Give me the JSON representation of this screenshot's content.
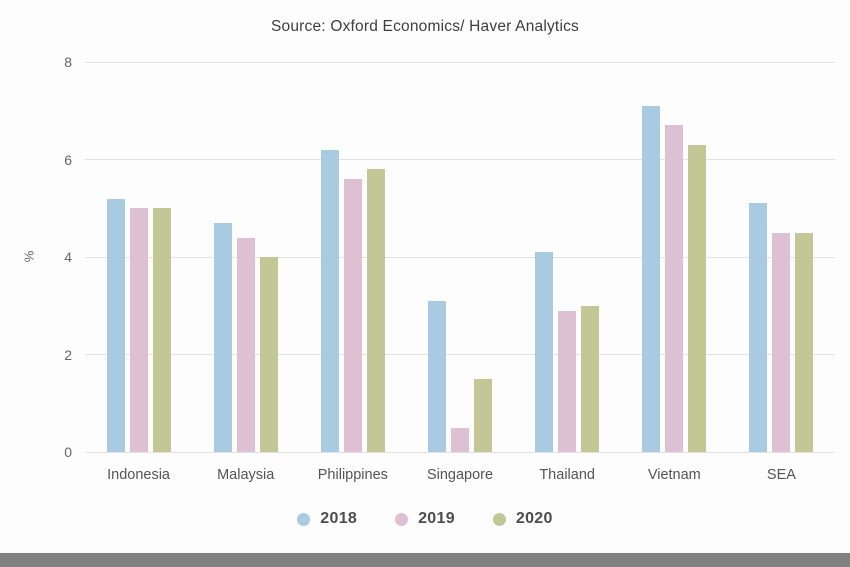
{
  "title": "Source: Oxford Economics/ Haver Analytics",
  "chart_data": {
    "type": "bar",
    "title": "Source: Oxford Economics/ Haver Analytics",
    "xlabel": "",
    "ylabel": "%",
    "ylim": [
      0,
      8
    ],
    "yticks": [
      0,
      2,
      4,
      6,
      8
    ],
    "grid": true,
    "legend_position": "bottom",
    "categories": [
      "Indonesia",
      "Malaysia",
      "Philippines",
      "Singapore",
      "Thailand",
      "Vietnam",
      "SEA"
    ],
    "series": [
      {
        "name": "2018",
        "color": "#a8cbe2",
        "values": [
          5.2,
          4.7,
          6.2,
          3.1,
          4.1,
          7.1,
          5.1
        ]
      },
      {
        "name": "2019",
        "color": "#ddc1d2",
        "values": [
          5.0,
          4.4,
          5.6,
          0.5,
          2.9,
          6.7,
          4.5
        ]
      },
      {
        "name": "2020",
        "color": "#c3c795",
        "values": [
          5.0,
          4.0,
          5.8,
          1.5,
          3.0,
          6.3,
          4.5
        ]
      }
    ]
  },
  "colors": {
    "background": "#fdfdfd",
    "gridline": "#e2e2e2",
    "axis_text": "#666666",
    "category_text": "#555555",
    "title_text": "#3e3e3e",
    "legend_text": "#4d4d4d",
    "bottom_bar": "#818181"
  }
}
